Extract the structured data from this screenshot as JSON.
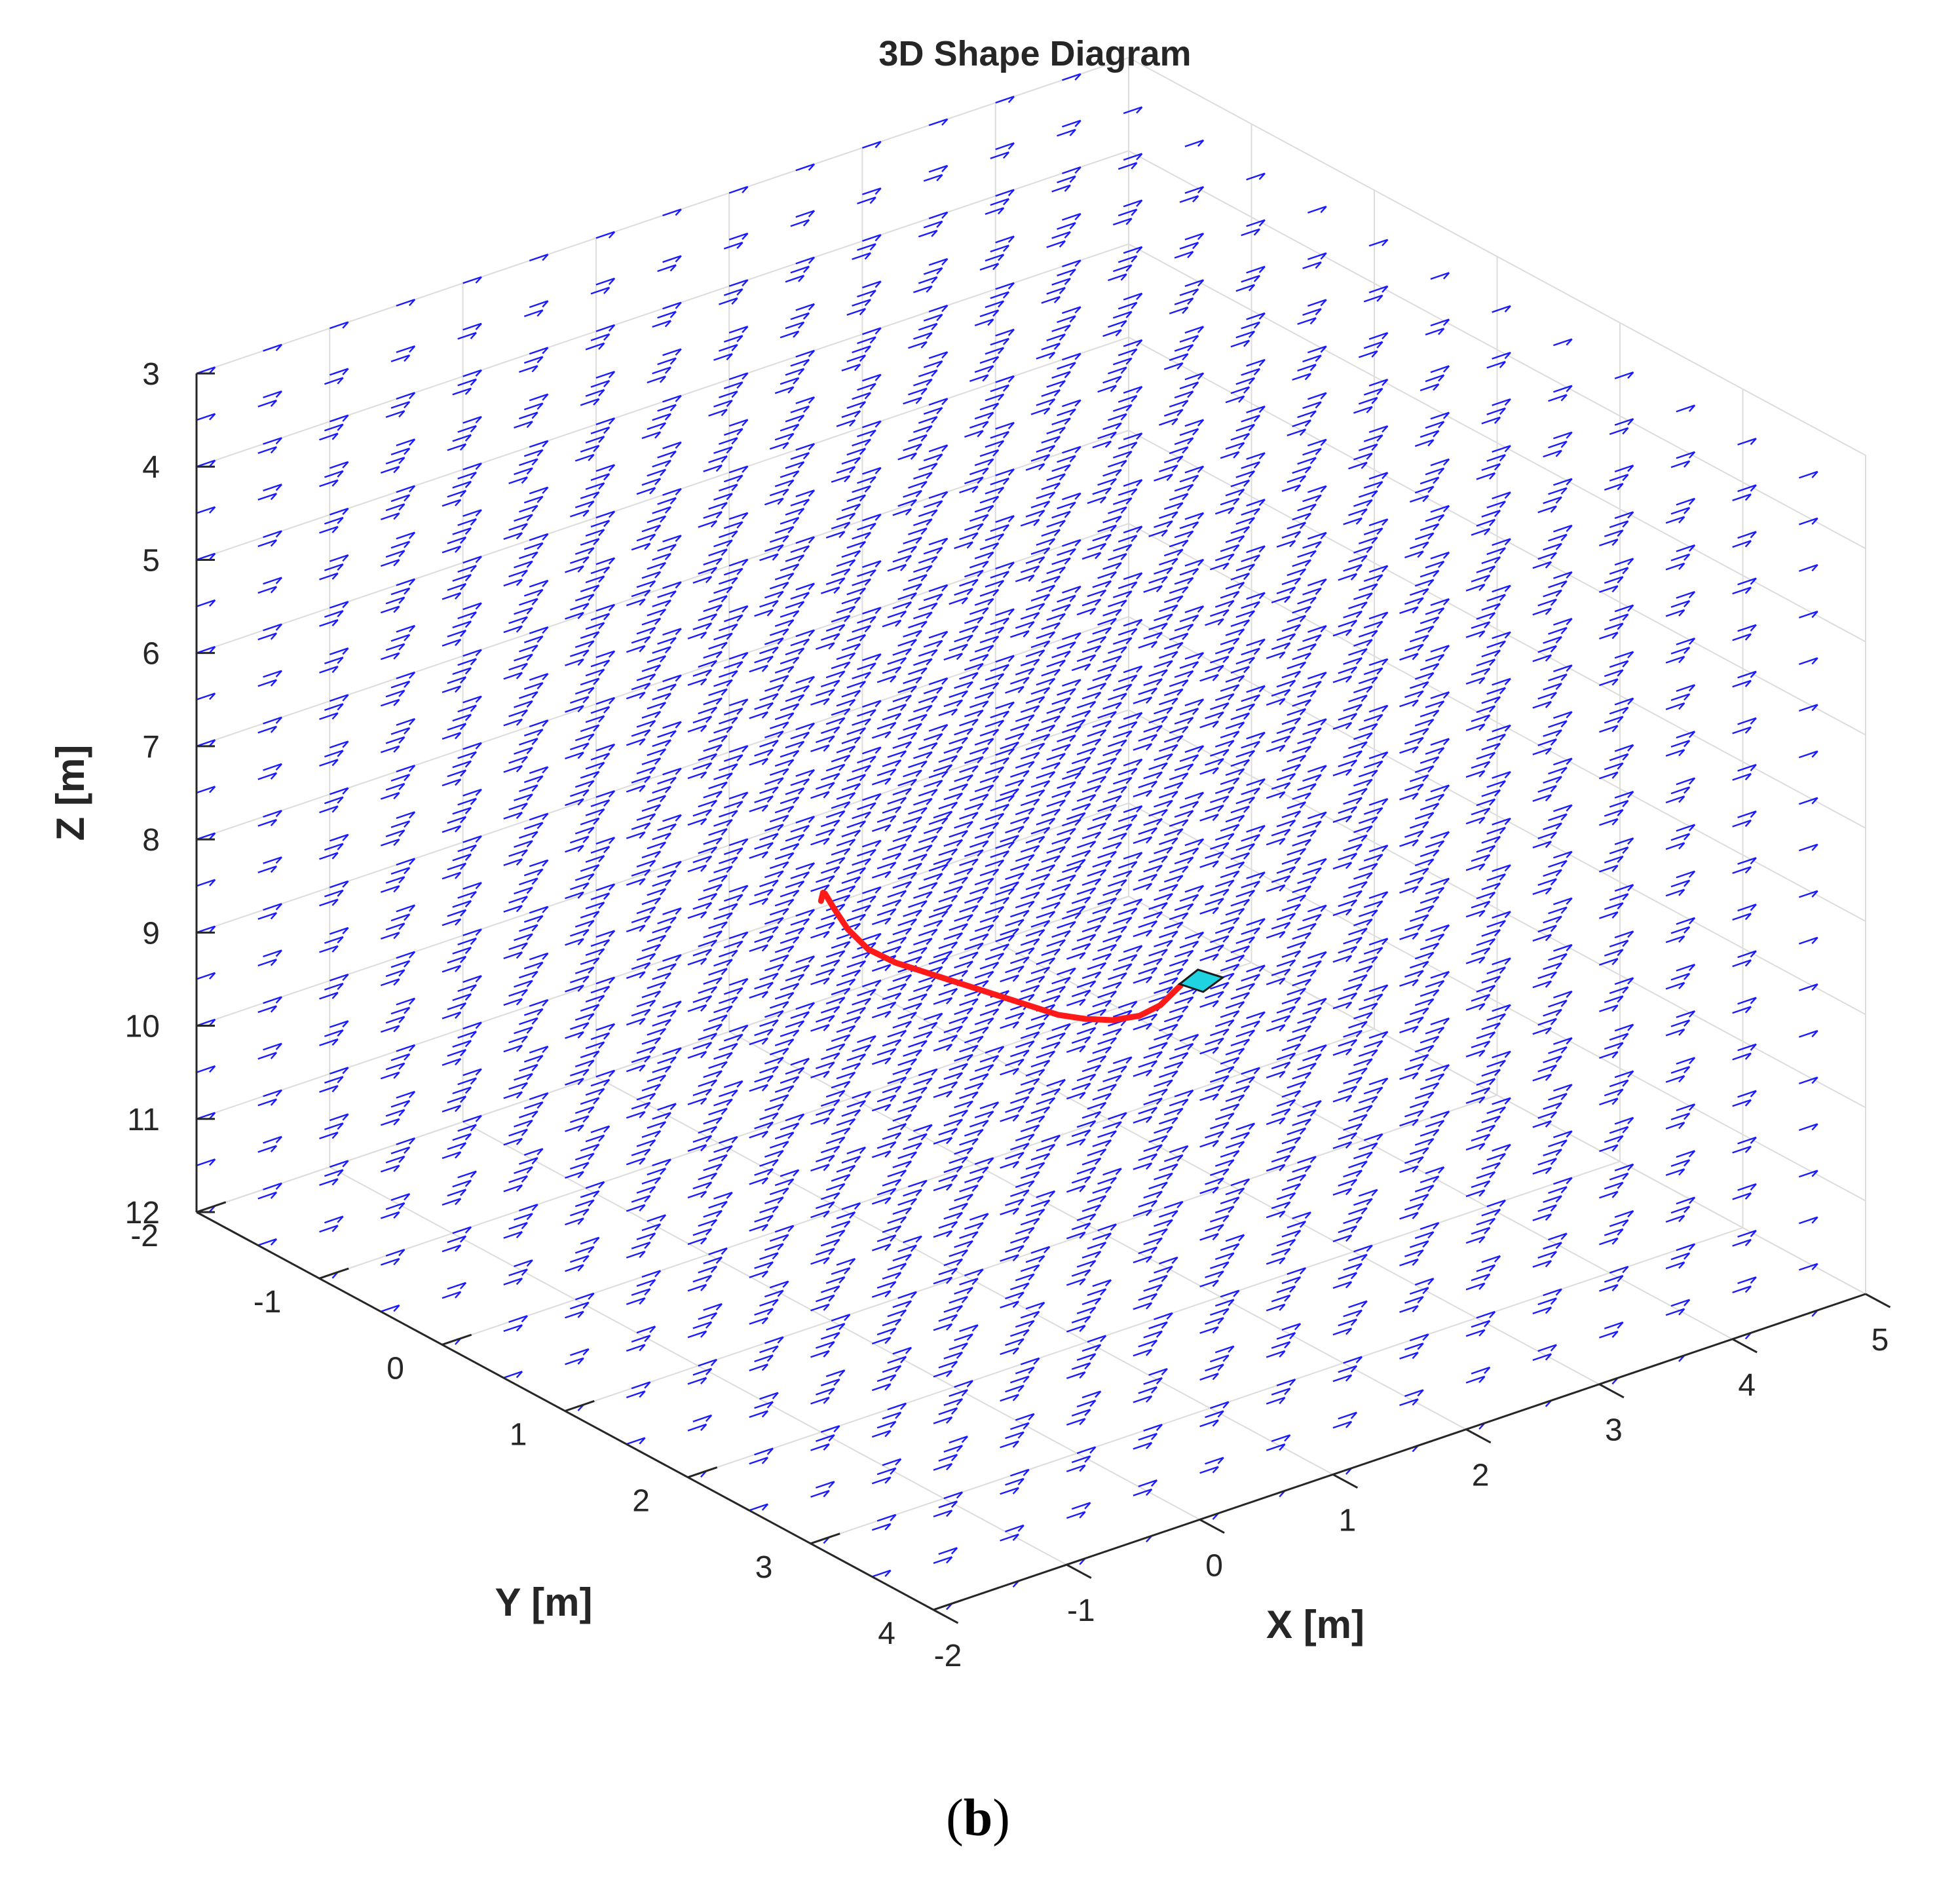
{
  "figure": {
    "caption_open": "(",
    "caption_letter": "b",
    "caption_close": ")"
  },
  "chart_data": {
    "type": "line",
    "view": "3d",
    "title": "3D Shape Diagram",
    "xlabel": "X [m]",
    "ylabel": "Y [m]",
    "zlabel": "Z [m]",
    "xlim": [
      -2,
      5
    ],
    "ylim": [
      -2,
      4
    ],
    "zlim": [
      3,
      12
    ],
    "z_direction": "reversed",
    "x_ticks": [
      "-2",
      "-1",
      "0",
      "1",
      "2",
      "3",
      "4",
      "5"
    ],
    "y_ticks": [
      "-2",
      "-1",
      "0",
      "1",
      "2",
      "3",
      "4"
    ],
    "z_ticks": [
      "3",
      "4",
      "5",
      "6",
      "7",
      "8",
      "9",
      "10",
      "11",
      "12"
    ],
    "grid": true,
    "colors": {
      "vector_field": "#1a1aff",
      "trajectory": "#ff1a1a",
      "marker": "#1fd3e0",
      "grid": "#dcdcdc",
      "axis": "#262626"
    },
    "vector_field": {
      "type": "quiver",
      "direction": "toward +X"
    },
    "series": [
      {
        "type": "line",
        "points": [
          [
            -1.0,
            2.0,
            6.3
          ],
          [
            -0.8,
            1.8,
            6.45
          ],
          [
            -0.6,
            1.6,
            6.7
          ],
          [
            -0.4,
            1.45,
            7.05
          ],
          [
            -0.2,
            1.35,
            7.45
          ],
          [
            0.0,
            1.3,
            7.8
          ],
          [
            0.25,
            1.25,
            8.1
          ],
          [
            0.5,
            1.2,
            8.35
          ],
          [
            0.75,
            1.15,
            8.6
          ],
          [
            1.0,
            1.1,
            8.85
          ],
          [
            1.25,
            1.05,
            9.1
          ],
          [
            1.5,
            1.0,
            9.35
          ],
          [
            1.75,
            0.95,
            9.6
          ],
          [
            2.0,
            0.9,
            9.8
          ],
          [
            2.25,
            0.85,
            9.97
          ],
          [
            2.5,
            0.8,
            10.08
          ],
          [
            2.7,
            0.75,
            10.1
          ],
          [
            2.9,
            0.7,
            10.02
          ]
        ]
      }
    ]
  }
}
